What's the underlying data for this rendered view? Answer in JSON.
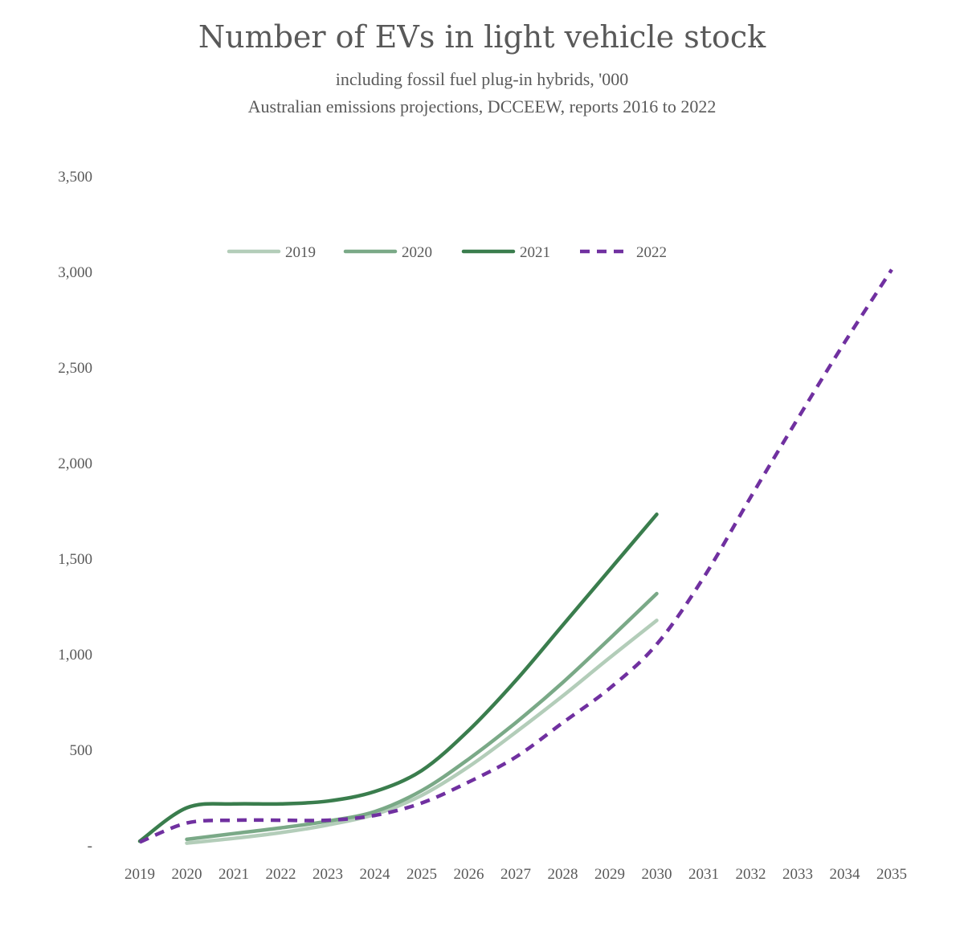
{
  "chart_data": {
    "type": "line",
    "title": "Number of EVs in light vehicle stock",
    "subtitle_line1": "including fossil fuel plug-in hybrids, '000",
    "subtitle_line2": "Australian emissions projections, DCCEEW, reports 2016 to 2022",
    "xlabel": "",
    "ylabel": "",
    "ylim": [
      0,
      3500
    ],
    "y_ticks": [
      {
        "value": 0,
        "label": "-"
      },
      {
        "value": 500,
        "label": "500"
      },
      {
        "value": 1000,
        "label": "1,000"
      },
      {
        "value": 1500,
        "label": "1,500"
      },
      {
        "value": 2000,
        "label": "2,000"
      },
      {
        "value": 2500,
        "label": "2,500"
      },
      {
        "value": 3000,
        "label": "3,000"
      },
      {
        "value": 3500,
        "label": "3,500"
      }
    ],
    "x": [
      "2019",
      "2020",
      "2021",
      "2022",
      "2023",
      "2024",
      "2025",
      "2026",
      "2027",
      "2028",
      "2029",
      "2030",
      "2031",
      "2032",
      "2033",
      "2034",
      "2035"
    ],
    "grid": false,
    "legend_position": "top-center",
    "series": [
      {
        "name": "2019",
        "color": "#b3cdb9",
        "dash": false,
        "values": [
          null,
          10,
          35,
          65,
          105,
          160,
          260,
          410,
          590,
          780,
          980,
          1175,
          null,
          null,
          null,
          null,
          null
        ]
      },
      {
        "name": "2020",
        "color": "#7aa987",
        "dash": false,
        "values": [
          null,
          30,
          60,
          90,
          125,
          175,
          285,
          450,
          640,
          850,
          1080,
          1315,
          null,
          null,
          null,
          null,
          null
        ]
      },
      {
        "name": "2021",
        "color": "#3a7d4d",
        "dash": false,
        "values": [
          20,
          195,
          215,
          215,
          230,
          280,
          390,
          600,
          860,
          1150,
          1440,
          1730,
          null,
          null,
          null,
          null,
          null
        ]
      },
      {
        "name": "2022",
        "color": "#7030a0",
        "dash": true,
        "values": [
          15,
          115,
          130,
          130,
          130,
          155,
          220,
          330,
          460,
          640,
          820,
          1050,
          1400,
          1820,
          2230,
          2630,
          3010
        ]
      }
    ]
  }
}
